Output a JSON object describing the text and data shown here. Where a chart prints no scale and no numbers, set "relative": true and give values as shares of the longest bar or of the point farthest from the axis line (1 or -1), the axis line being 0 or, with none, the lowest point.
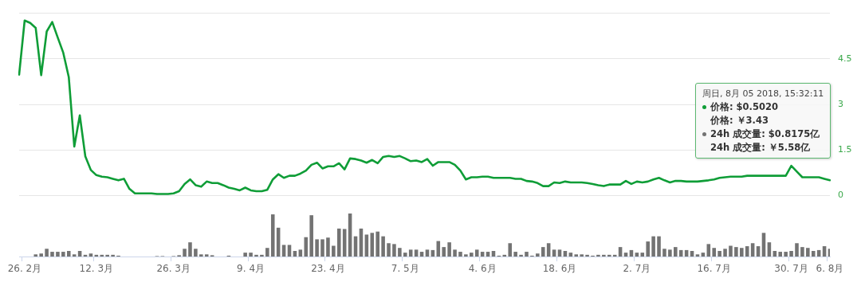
{
  "chart_data": [
    {
      "type": "line",
      "categories": [
        null,
        null,
        null,
        null,
        null,
        null,
        null,
        null,
        null,
        null,
        null,
        null,
        null,
        null,
        null,
        null,
        null,
        null,
        null,
        null,
        null,
        null,
        null,
        null,
        null,
        null,
        null,
        null,
        null,
        null,
        null,
        null,
        null,
        null,
        null,
        null,
        null,
        null,
        null,
        null,
        null,
        null,
        null,
        null,
        null,
        null,
        null,
        null,
        null,
        null,
        null,
        null,
        null,
        null,
        null,
        null,
        null,
        null,
        null,
        null,
        null,
        null,
        null,
        null,
        null,
        null,
        null,
        null,
        null,
        null,
        null,
        null,
        null,
        null,
        null,
        null,
        null,
        null,
        null,
        null,
        null,
        null,
        null,
        null,
        null,
        null,
        null,
        null,
        null,
        null,
        null,
        null,
        null,
        null,
        null,
        null,
        null,
        null,
        null,
        null,
        null,
        null,
        null,
        null,
        null,
        null,
        null,
        null,
        null,
        null,
        null,
        null,
        null,
        null,
        null,
        null,
        null,
        null,
        null,
        null,
        null,
        null,
        null,
        null,
        null,
        null,
        null,
        null,
        null,
        null,
        null,
        null,
        null,
        null,
        null,
        null,
        null,
        null,
        null,
        null,
        null,
        null,
        null,
        null,
        null,
        null,
        null,
        null
      ],
      "series": [
        {
          "color": "#0f9d37",
          "values": [
            3.98,
            5.76,
            5.68,
            5.52,
            3.96,
            5.4,
            5.71,
            5.2,
            4.7,
            3.9,
            1.61,
            2.64,
            1.29,
            0.84,
            0.67,
            0.62,
            0.6,
            0.55,
            0.5,
            0.55,
            0.22,
            0.07,
            0.07,
            0.07,
            0.07,
            0.05,
            0.05,
            0.05,
            0.07,
            0.14,
            0.38,
            0.53,
            0.34,
            0.29,
            0.46,
            0.41,
            0.41,
            0.34,
            0.26,
            0.22,
            0.17,
            0.26,
            0.17,
            0.14,
            0.14,
            0.19,
            0.53,
            0.7,
            0.58,
            0.65,
            0.65,
            0.72,
            0.82,
            1.01,
            1.08,
            0.89,
            0.96,
            0.96,
            1.06,
            0.86,
            1.22,
            1.2,
            1.15,
            1.08,
            1.17,
            1.06,
            1.27,
            1.3,
            1.27,
            1.3,
            1.22,
            1.13,
            1.15,
            1.1,
            1.2,
            0.98,
            1.1,
            1.1,
            1.1,
            1.01,
            0.82,
            0.53,
            0.6,
            0.6,
            0.62,
            0.62,
            0.58,
            0.58,
            0.58,
            0.58,
            0.55,
            0.55,
            0.48,
            0.46,
            0.41,
            0.31,
            0.31,
            0.43,
            0.41,
            0.46,
            0.43,
            0.43,
            0.43,
            0.41,
            0.38,
            0.34,
            0.31,
            0.36,
            0.36,
            0.36,
            0.48,
            0.38,
            0.46,
            0.43,
            0.46,
            0.53,
            0.58,
            0.5,
            0.43,
            0.48,
            0.48,
            0.46,
            0.46,
            0.46,
            0.48,
            0.5,
            0.53,
            0.58,
            0.6,
            0.62,
            0.62,
            0.62,
            0.65,
            0.65,
            0.65,
            0.65,
            0.65,
            0.65,
            0.65,
            0.65,
            0.98,
            0.79,
            0.6,
            0.6,
            0.6,
            0.6,
            0.55,
            0.502
          ]
        }
      ],
      "ylim": [
        0,
        6
      ],
      "yticks": [
        0,
        1.5,
        3,
        4.5,
        {
          "value": 6,
          "label": null
        }
      ],
      "grid": "y",
      "tick_labels": "y",
      "annotations": [
        "周日, 8月 05 2018, 15:32:11",
        "价格: $0.5020",
        "价格: ￥3.43",
        "24h 成交量: $0.8175亿",
        "24h 成交量: ￥5.58亿"
      ]
    },
    {
      "type": "bar",
      "relative": true,
      "tick_labels": "x",
      "categories": [
        null,
        "26. 2月",
        null,
        null,
        null,
        null,
        null,
        null,
        null,
        null,
        null,
        null,
        null,
        null,
        "12. 3月",
        null,
        null,
        null,
        null,
        null,
        null,
        null,
        null,
        null,
        null,
        null,
        null,
        null,
        "26. 3月",
        null,
        null,
        null,
        null,
        null,
        null,
        null,
        null,
        null,
        null,
        null,
        null,
        null,
        "9. 4月",
        null,
        null,
        null,
        null,
        null,
        null,
        null,
        null,
        null,
        null,
        null,
        null,
        null,
        "23. 4月",
        null,
        null,
        null,
        null,
        null,
        null,
        null,
        null,
        null,
        null,
        null,
        null,
        null,
        "7. 5月",
        null,
        null,
        null,
        null,
        null,
        null,
        null,
        null,
        null,
        null,
        null,
        null,
        null,
        "4. 6月",
        null,
        null,
        null,
        null,
        null,
        null,
        null,
        null,
        null,
        null,
        null,
        null,
        null,
        "18. 6月",
        null,
        null,
        null,
        null,
        null,
        null,
        null,
        null,
        null,
        null,
        null,
        null,
        null,
        "2. 7月",
        null,
        null,
        null,
        null,
        null,
        null,
        null,
        null,
        null,
        null,
        null,
        null,
        null,
        "16. 7月",
        null,
        null,
        null,
        null,
        null,
        null,
        null,
        null,
        null,
        null,
        null,
        null,
        null,
        "30. 7月",
        null,
        null,
        null,
        null,
        null,
        null,
        "6. 8月"
      ],
      "series": [
        {
          "color": "#737373",
          "values": [
            null,
            null,
            null,
            0.05,
            0.07,
            0.18,
            0.11,
            0.11,
            0.11,
            0.13,
            0.05,
            0.13,
            0.04,
            0.07,
            0.04,
            0.04,
            0.04,
            0.04,
            0.02,
            null,
            null,
            null,
            null,
            null,
            null,
            0.01,
            0.01,
            null,
            0.01,
            0.03,
            0.18,
            0.33,
            0.18,
            0.05,
            0.05,
            0.03,
            null,
            null,
            0.02,
            null,
            null,
            0.09,
            0.09,
            0.04,
            0.04,
            0.2,
            0.98,
            0.67,
            0.27,
            0.27,
            0.13,
            0.16,
            0.45,
            0.96,
            0.4,
            0.4,
            0.44,
            0.25,
            0.65,
            0.64,
            1,
            0.47,
            0.65,
            0.51,
            0.55,
            0.58,
            0.47,
            0.31,
            0.29,
            0.2,
            0.09,
            0.16,
            0.16,
            0.11,
            0.16,
            0.15,
            0.36,
            0.22,
            0.33,
            0.16,
            0.11,
            0.05,
            0.09,
            0.16,
            0.11,
            0.11,
            0.13,
            0.02,
            0.04,
            0.31,
            0.11,
            0.04,
            0.11,
            0.02,
            0.07,
            0.22,
            0.31,
            0.16,
            0.16,
            0.13,
            0.09,
            0.05,
            0.05,
            0.04,
            0.02,
            0.04,
            0.04,
            0.04,
            0.04,
            0.22,
            0.09,
            0.15,
            0.09,
            0.09,
            0.35,
            0.47,
            0.47,
            0.18,
            0.16,
            0.22,
            0.15,
            0.15,
            0.13,
            0.05,
            0.09,
            0.29,
            0.2,
            0.13,
            0.18,
            0.25,
            0.22,
            0.2,
            0.24,
            0.31,
            0.24,
            0.55,
            0.33,
            0.13,
            0.11,
            0.11,
            0.13,
            0.31,
            0.22,
            0.2,
            0.13,
            0.15,
            0.24,
            0.18
          ]
        }
      ]
    }
  ]
}
